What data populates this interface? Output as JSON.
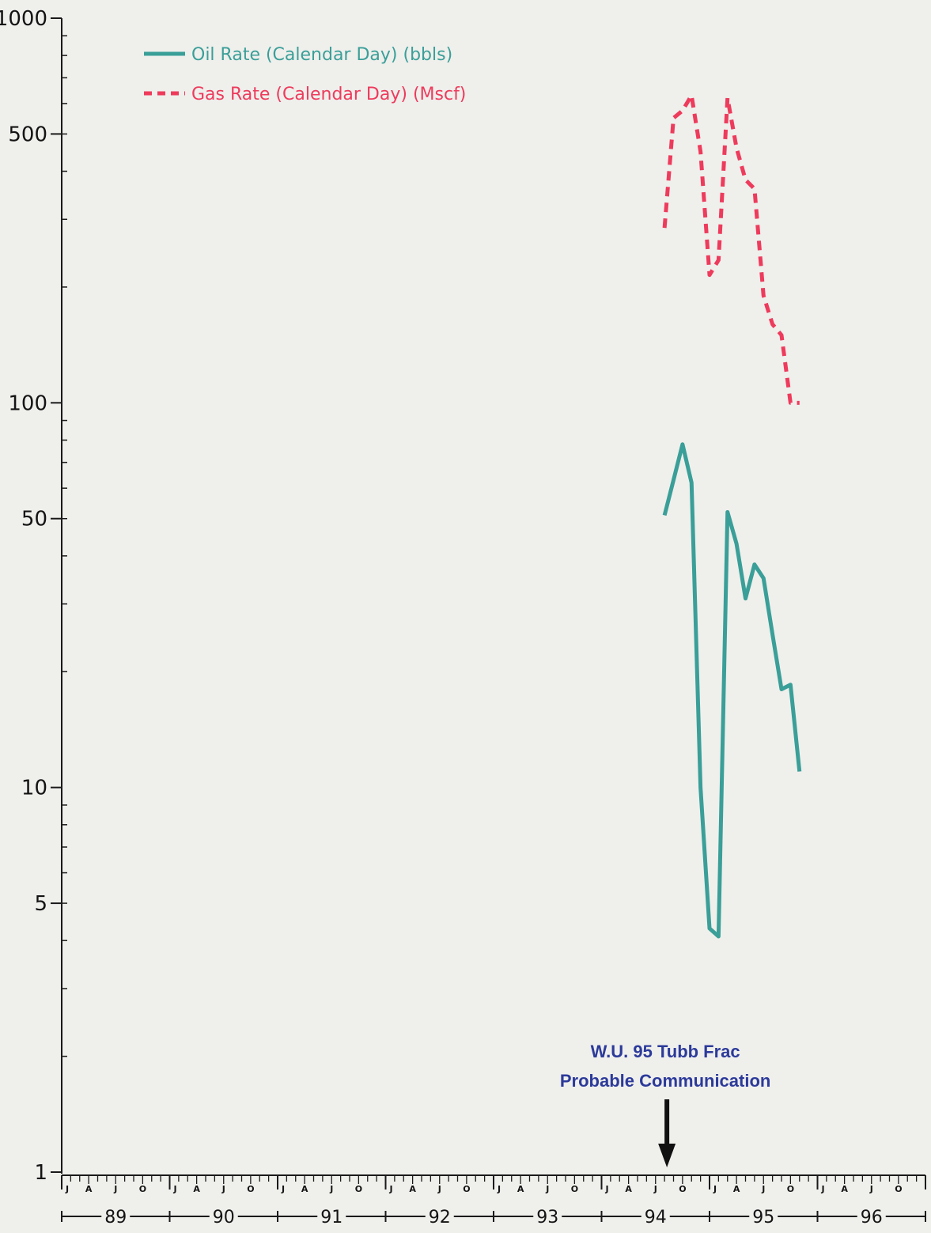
{
  "chart_data": {
    "type": "line",
    "title": "",
    "xlabel": "",
    "ylabel": "",
    "y_scale": "log",
    "ylim": [
      1,
      1000
    ],
    "xlim": [
      "1989-01",
      "1996-12"
    ],
    "y_ticks": [
      {
        "value": 1,
        "label": "1"
      },
      {
        "value": 5,
        "label": "5"
      },
      {
        "value": 10,
        "label": "10"
      },
      {
        "value": 50,
        "label": "50"
      },
      {
        "value": 100,
        "label": "100"
      },
      {
        "value": 500,
        "label": "500"
      },
      {
        "value": 1000,
        "label": "1000"
      }
    ],
    "month_tick_labels": [
      "J",
      "A",
      "J",
      "O"
    ],
    "year_labels": [
      "89",
      "90",
      "91",
      "92",
      "93",
      "94",
      "95",
      "96"
    ],
    "legend": {
      "placement": "top-left",
      "entries": [
        {
          "label": "Oil Rate (Calendar Day) (bbls)",
          "series": "oil",
          "color": "#3a9f98",
          "style": "solid"
        },
        {
          "label": "Gas Rate (Calendar Day) (Mscf)",
          "series": "gas",
          "color": "#ee3b5c",
          "style": "dashed"
        }
      ]
    },
    "series": [
      {
        "name": "Oil Rate (Calendar Day) (bbls)",
        "key": "oil",
        "color": "#3a9f98",
        "style": "solid",
        "x": [
          "1994-08",
          "1994-09",
          "1994-10",
          "1994-11",
          "1994-12",
          "1995-01",
          "1995-02",
          "1995-03",
          "1995-04",
          "1995-05",
          "1995-06",
          "1995-07",
          "1995-08",
          "1995-09",
          "1995-10",
          "1995-11"
        ],
        "y": [
          51,
          63,
          78,
          62,
          10,
          4.3,
          4.1,
          52,
          43,
          31,
          38,
          35,
          25,
          18,
          18.5,
          11
        ]
      },
      {
        "name": "Gas Rate (Calendar Day) (Mscf)",
        "key": "gas",
        "color": "#ee3b5c",
        "style": "dashed",
        "x": [
          "1994-08",
          "1994-09",
          "1994-10",
          "1994-11",
          "1994-12",
          "1995-01",
          "1995-02",
          "1995-03",
          "1995-04",
          "1995-05",
          "1995-06",
          "1995-07",
          "1995-08",
          "1995-09",
          "1995-10",
          "1995-11"
        ],
        "y": [
          285,
          550,
          575,
          630,
          450,
          215,
          235,
          620,
          460,
          380,
          360,
          190,
          160,
          150,
          100,
          100
        ]
      }
    ],
    "annotations": [
      {
        "text_lines": [
          "W.U. 95 Tubb Frac",
          "Probable Communication"
        ],
        "x": "1994-08",
        "arrow": true,
        "color": "#2c3a9a"
      }
    ]
  }
}
